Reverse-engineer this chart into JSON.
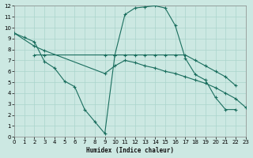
{
  "xlabel": "Humidex (Indice chaleur)",
  "bg_color": "#cce8e2",
  "grid_color": "#aad4cc",
  "line_color": "#1a6e5e",
  "xlim": [
    0,
    23
  ],
  "ylim": [
    0,
    12
  ],
  "xticks": [
    0,
    1,
    2,
    3,
    4,
    5,
    6,
    7,
    8,
    9,
    10,
    11,
    12,
    13,
    14,
    15,
    16,
    17,
    18,
    19,
    20,
    21,
    22,
    23
  ],
  "yticks": [
    0,
    1,
    2,
    3,
    4,
    5,
    6,
    7,
    8,
    9,
    10,
    11,
    12
  ],
  "line1_x": [
    0,
    1,
    2,
    3,
    4,
    5,
    6,
    7,
    8,
    9,
    10,
    11,
    12,
    13,
    14,
    15,
    16,
    17,
    18,
    19,
    20,
    21,
    22
  ],
  "line1_y": [
    9.5,
    9.1,
    8.7,
    6.9,
    6.3,
    5.1,
    4.6,
    2.5,
    1.4,
    0.3,
    7.5,
    11.2,
    11.8,
    11.9,
    12.0,
    11.8,
    10.2,
    7.2,
    5.7,
    5.2,
    3.6,
    2.5,
    2.5
  ],
  "line2_x": [
    2,
    3,
    9,
    10,
    11,
    12,
    13,
    14,
    15,
    16,
    17,
    18,
    19,
    20,
    21,
    22
  ],
  "line2_y": [
    7.5,
    7.5,
    7.5,
    7.5,
    7.5,
    7.5,
    7.5,
    7.5,
    7.5,
    7.5,
    7.5,
    7.0,
    6.5,
    6.0,
    5.5,
    4.7
  ],
  "line3_x": [
    0,
    2,
    3,
    9,
    10,
    11,
    12,
    13,
    14,
    15,
    16,
    17,
    18,
    19,
    20,
    21,
    22,
    23
  ],
  "line3_y": [
    9.5,
    8.3,
    7.9,
    5.8,
    6.5,
    7.0,
    6.8,
    6.5,
    6.3,
    6.0,
    5.8,
    5.5,
    5.2,
    4.9,
    4.5,
    4.0,
    3.5,
    2.7
  ]
}
